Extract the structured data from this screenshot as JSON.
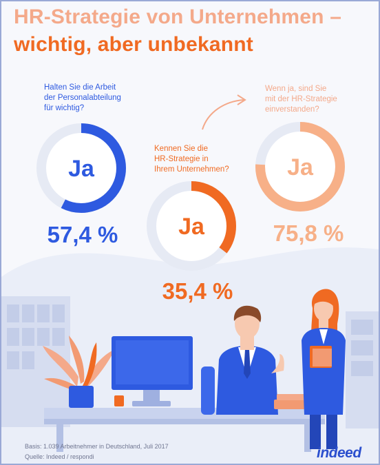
{
  "title_line1": "HR-Strategie von Unternehmen –",
  "title_line2": "wichtig, aber unbekannt",
  "chart_data": {
    "type": "pie",
    "charts": [
      {
        "question": [
          "Halten Sie die Arbeit",
          "der Personalabteilung",
          "für wichtig?"
        ],
        "center_label": "Ja",
        "value": 57.4,
        "value_label": "57,4 %",
        "color": "#2e5ae0"
      },
      {
        "question": [
          "Kennen Sie die",
          "HR-Strategie in",
          "Ihrem Unternehmen?"
        ],
        "center_label": "Ja",
        "value": 35.4,
        "value_label": "35,4 %",
        "color": "#f06a22"
      },
      {
        "question": [
          "Wenn ja, sind Sie",
          "mit der HR-Strategie",
          "einverstanden?"
        ],
        "center_label": "Ja",
        "value": 75.8,
        "value_label": "75,8 %",
        "color": "#f7b088"
      }
    ]
  },
  "footer": {
    "basis": "Basis: 1.039 Arbeitnehmer in Deutschland, Juli 2017",
    "source": "Quelle: Indeed / respondi"
  },
  "logo": "indeed",
  "colors": {
    "blue": "#2e5ae0",
    "orange": "#f06a22",
    "peach": "#f7b088",
    "track": "#e6eaf4"
  }
}
